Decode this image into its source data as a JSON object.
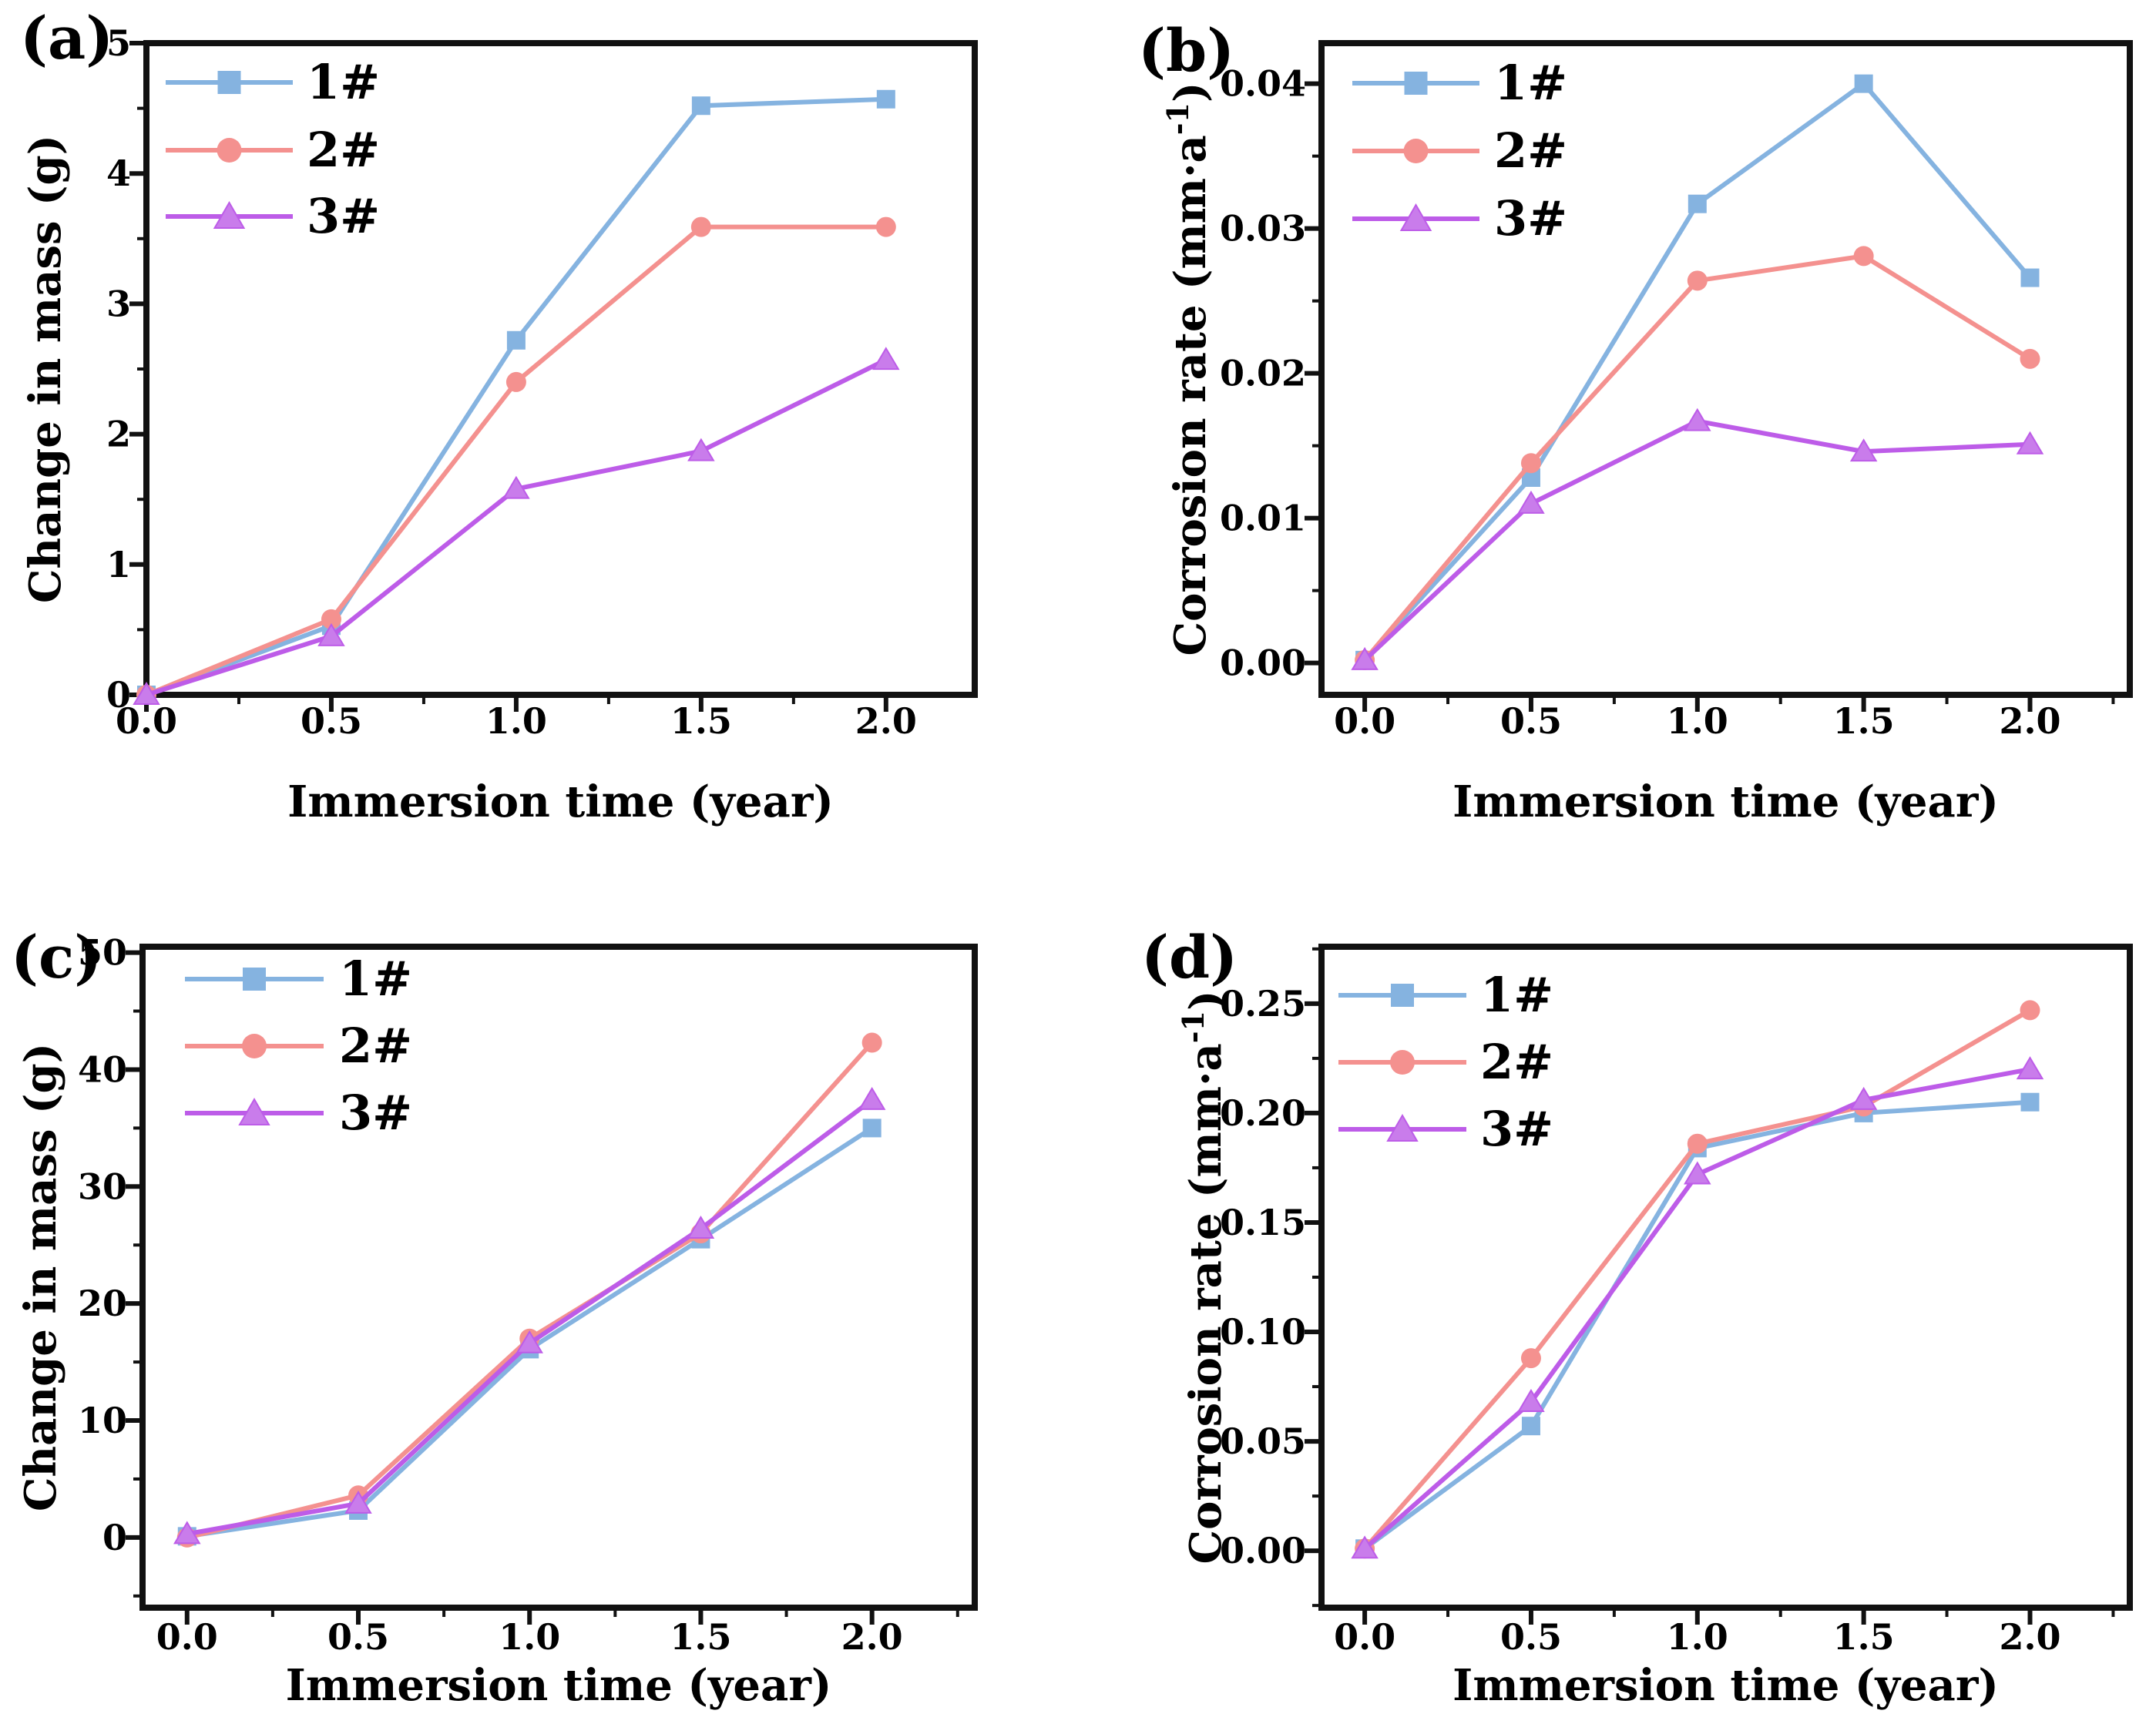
{
  "page": {
    "background": "#ffffff"
  },
  "colors": {
    "series_1": "#85b3e0",
    "series_2": "#f4918f",
    "series_3": "#bd5ce8",
    "series_3_marker_fill": "#c97ceb",
    "axis": "#111111",
    "text": "#000000"
  },
  "chart_data": [
    {
      "panel_label": "(a)",
      "type": "line",
      "xlabel": "Immersion time (year)",
      "ylabel": "Change in mass (g)",
      "x": [
        0.0,
        0.5,
        1.0,
        1.5,
        2.0
      ],
      "xtick_labels": [
        "0.0",
        "0.5",
        "1.0",
        "1.5",
        "2.0"
      ],
      "ytick_values": [
        0,
        1,
        2,
        3,
        4,
        5
      ],
      "ytick_labels": [
        "0",
        "1",
        "2",
        "3",
        "4",
        "5"
      ],
      "xlim": [
        0,
        2.24
      ],
      "ylim": [
        0,
        5
      ],
      "grid": false,
      "legend_position": "top-left",
      "legend": [
        "1#",
        "2#",
        "3#"
      ],
      "series": [
        {
          "name": "1#",
          "marker": "square",
          "color_key": "series_1",
          "values": [
            0,
            0.53,
            2.72,
            4.52,
            4.57
          ]
        },
        {
          "name": "2#",
          "marker": "circle",
          "color_key": "series_2",
          "values": [
            0,
            0.58,
            2.4,
            3.59,
            3.59
          ]
        },
        {
          "name": "3#",
          "marker": "triangle",
          "color_key": "series_3",
          "values": [
            0,
            0.45,
            1.58,
            1.87,
            2.57
          ]
        }
      ]
    },
    {
      "panel_label": "(b)",
      "type": "line",
      "xlabel": "Immersion time (year)",
      "ylabel": "Corrosion rate (mm·a⁻¹)",
      "ylabel_parts": {
        "pre": "Corrosion rate (mm·a",
        "sup": "-1",
        "post": ")"
      },
      "x": [
        0.0,
        0.5,
        1.0,
        1.5,
        2.0
      ],
      "xtick_labels": [
        "0.0",
        "0.5",
        "1.0",
        "1.5",
        "2.0"
      ],
      "ytick_values": [
        0.0,
        0.01,
        0.02,
        0.03,
        0.04
      ],
      "ytick_labels": [
        "0.00",
        "0.01",
        "0.02",
        "0.03",
        "0.04"
      ],
      "xlim": [
        -0.13,
        2.3
      ],
      "ylim": [
        -0.0022,
        0.0428
      ],
      "grid": false,
      "legend_position": "top-left",
      "legend": [
        "1#",
        "2#",
        "3#"
      ],
      "series": [
        {
          "name": "1#",
          "marker": "square",
          "color_key": "series_1",
          "values": [
            0.0002,
            0.0128,
            0.0317,
            0.04,
            0.0266
          ]
        },
        {
          "name": "2#",
          "marker": "circle",
          "color_key": "series_2",
          "values": [
            0.0002,
            0.0138,
            0.0264,
            0.0281,
            0.021
          ]
        },
        {
          "name": "3#",
          "marker": "triangle",
          "color_key": "series_3",
          "values": [
            0.0002,
            0.011,
            0.0167,
            0.0146,
            0.0151
          ]
        }
      ]
    },
    {
      "panel_label": "(c)",
      "type": "line",
      "xlabel": "Immersion time （year）",
      "ylabel": "Change in mass (g)",
      "x": [
        0.0,
        0.5,
        1.0,
        1.5,
        2.0
      ],
      "xtick_labels": [
        "0.0",
        "0.5",
        "1.0",
        "1.5",
        "2.0"
      ],
      "ytick_values": [
        0,
        10,
        20,
        30,
        40,
        50
      ],
      "ytick_labels": [
        "0",
        "10",
        "20",
        "30",
        "40",
        "50"
      ],
      "xlim": [
        -0.13,
        2.3
      ],
      "ylim": [
        -6,
        50.5
      ],
      "grid": false,
      "legend_position": "top-left",
      "legend": [
        "1#",
        "2#",
        "3#"
      ],
      "series": [
        {
          "name": "1#",
          "marker": "square",
          "color_key": "series_1",
          "values": [
            0.1,
            2.3,
            16.1,
            25.5,
            35.0
          ]
        },
        {
          "name": "2#",
          "marker": "circle",
          "color_key": "series_2",
          "values": [
            0.0,
            3.6,
            17.0,
            26.0,
            42.3
          ]
        },
        {
          "name": "3#",
          "marker": "triangle",
          "color_key": "series_3",
          "values": [
            0.3,
            2.9,
            16.6,
            26.4,
            37.4
          ]
        }
      ]
    },
    {
      "panel_label": "(d)",
      "type": "line",
      "xlabel": "Immersion time (year)",
      "ylabel": "Corrosion rate (mm·a⁻¹)",
      "ylabel_parts": {
        "pre": "Corrosion rate (mm·a",
        "sup": "-1",
        "post": ")"
      },
      "x": [
        0.0,
        0.5,
        1.0,
        1.5,
        2.0
      ],
      "xtick_labels": [
        "0.0",
        "0.5",
        "1.0",
        "1.5",
        "2.0"
      ],
      "ytick_values": [
        0.0,
        0.05,
        0.1,
        0.15,
        0.2,
        0.25
      ],
      "ytick_labels": [
        "0.00",
        "0.05",
        "0.10",
        "0.15",
        "0.20",
        "0.25"
      ],
      "xlim": [
        -0.13,
        2.3
      ],
      "ylim": [
        -0.026,
        0.276
      ],
      "grid": false,
      "legend_position": "top-left",
      "legend": [
        "1#",
        "2#",
        "3#"
      ],
      "series": [
        {
          "name": "1#",
          "marker": "square",
          "color_key": "series_1",
          "values": [
            0.001,
            0.057,
            0.184,
            0.2,
            0.205
          ]
        },
        {
          "name": "2#",
          "marker": "circle",
          "color_key": "series_2",
          "values": [
            0.001,
            0.088,
            0.186,
            0.203,
            0.247
          ]
        },
        {
          "name": "3#",
          "marker": "triangle",
          "color_key": "series_3",
          "values": [
            0.001,
            0.068,
            0.172,
            0.206,
            0.22
          ]
        }
      ]
    }
  ]
}
